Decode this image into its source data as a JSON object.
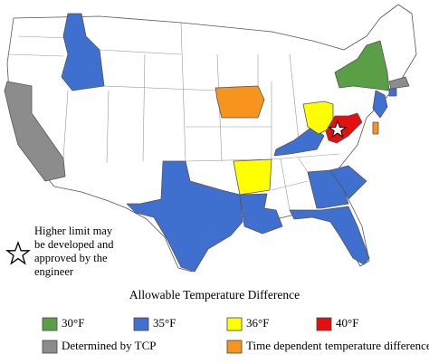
{
  "annotation": [
    "Higher limit may",
    "be developed and",
    "approved by the",
    "engineer"
  ],
  "legend": {
    "title": "Allowable Temperature Difference",
    "items": [
      {
        "label": "30°F",
        "color": "#5a9e45"
      },
      {
        "label": "35°F",
        "color": "#3f6fcf"
      },
      {
        "label": "36°F",
        "color": "#ffff00"
      },
      {
        "label": "40°F",
        "color": "#e31010"
      },
      {
        "label": "Determined by TCP",
        "color": "#8c8c8c"
      },
      {
        "label": "Time dependent temperature difference",
        "color": "#f7941d"
      }
    ]
  }
}
